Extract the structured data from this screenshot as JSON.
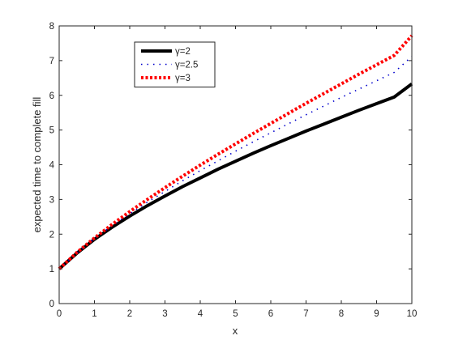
{
  "chart_data": {
    "type": "line",
    "xlabel": "x",
    "ylabel": "expected time to complete fill",
    "xlim": [
      0,
      10
    ],
    "ylim": [
      0,
      8
    ],
    "xticks": [
      "0",
      "1",
      "2",
      "3",
      "4",
      "5",
      "6",
      "7",
      "8",
      "9",
      "10"
    ],
    "yticks": [
      "0",
      "1",
      "2",
      "3",
      "4",
      "5",
      "6",
      "7",
      "8"
    ],
    "grid": false,
    "legend_position": "top-left",
    "series": [
      {
        "name": "γ=2",
        "color": "#000000",
        "style": "solid",
        "x": [
          0,
          0.5,
          1,
          1.5,
          2,
          2.5,
          3,
          3.5,
          4,
          4.5,
          5,
          5.5,
          6,
          6.5,
          7,
          7.5,
          8,
          8.5,
          9,
          9.5,
          10
        ],
        "y": [
          1.0,
          1.45,
          1.85,
          2.2,
          2.52,
          2.82,
          3.1,
          3.37,
          3.62,
          3.87,
          4.1,
          4.33,
          4.55,
          4.76,
          4.97,
          5.17,
          5.37,
          5.57,
          5.76,
          5.95,
          6.33
        ]
      },
      {
        "name": "γ=2.5",
        "color": "#0000cc",
        "style": "dotted",
        "x": [
          0,
          0.5,
          1,
          1.5,
          2,
          2.5,
          3,
          3.5,
          4,
          4.5,
          5,
          5.5,
          6,
          6.5,
          7,
          7.5,
          8,
          8.5,
          9,
          9.5,
          10
        ],
        "y": [
          1.0,
          1.46,
          1.87,
          2.24,
          2.59,
          2.92,
          3.23,
          3.54,
          3.83,
          4.11,
          4.39,
          4.66,
          4.92,
          5.18,
          5.44,
          5.69,
          5.94,
          6.18,
          6.42,
          6.66,
          7.12
        ]
      },
      {
        "name": "γ=3",
        "color": "#ff0000",
        "style": "dashed",
        "x": [
          0,
          0.5,
          1,
          1.5,
          2,
          2.5,
          3,
          3.5,
          4,
          4.5,
          5,
          5.5,
          6,
          6.5,
          7,
          7.5,
          8,
          8.5,
          9,
          9.5,
          10
        ],
        "y": [
          1.0,
          1.47,
          1.89,
          2.28,
          2.65,
          3.0,
          3.34,
          3.67,
          3.99,
          4.3,
          4.6,
          4.9,
          5.19,
          5.48,
          5.77,
          6.05,
          6.33,
          6.61,
          6.88,
          7.15,
          7.72
        ]
      }
    ]
  }
}
